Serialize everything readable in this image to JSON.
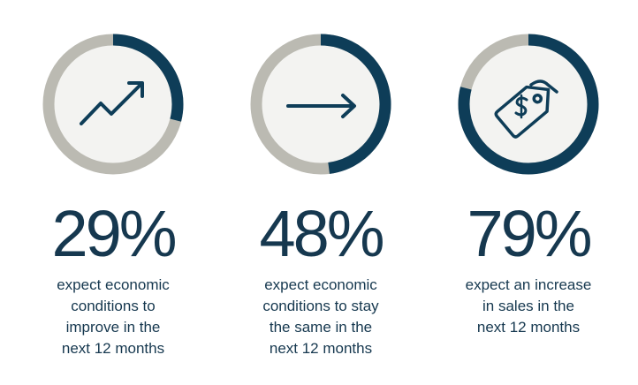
{
  "chart_data": [
    {
      "type": "donut",
      "values": [
        29
      ],
      "value_labels": [
        "29%"
      ],
      "color": "#0e3d58",
      "caption": [
        "expect economic",
        "conditions to",
        "improve in the",
        "next 12 months"
      ]
    },
    {
      "type": "donut",
      "values": [
        48
      ],
      "value_labels": [
        "48%"
      ],
      "color": "#0e3d58",
      "caption": [
        "expect economic",
        "conditions to stay",
        "the same in the",
        "next 12 months"
      ]
    },
    {
      "type": "donut",
      "values": [
        79
      ],
      "value_labels": [
        "79%"
      ],
      "color": "#0e3d58",
      "caption": [
        "expect an increase",
        "in sales in the",
        "next 12 months"
      ]
    }
  ]
}
